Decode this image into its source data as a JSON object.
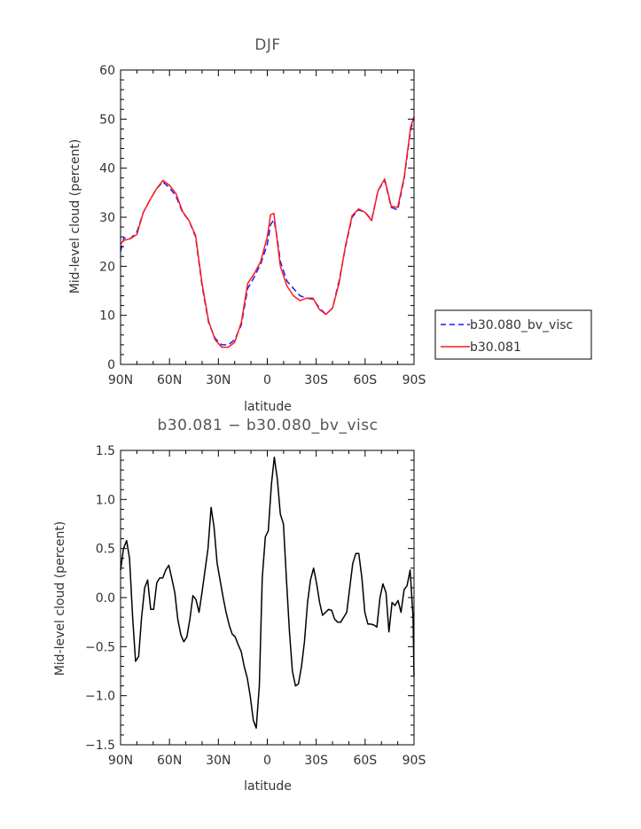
{
  "chart_data": [
    {
      "type": "line",
      "title": "DJF",
      "xlabel": "latitude",
      "ylabel": "Mid-level cloud (percent)",
      "xlim": [
        -90,
        90
      ],
      "ylim": [
        0,
        60
      ],
      "x_ticks": [
        -90,
        -60,
        -30,
        0,
        30,
        60,
        90
      ],
      "x_tick_labels": [
        "90N",
        "60N",
        "30N",
        "0",
        "30S",
        "60S",
        "90S"
      ],
      "y_ticks": [
        0,
        10,
        20,
        30,
        40,
        50,
        60
      ],
      "y_tick_labels": [
        "0",
        "10",
        "20",
        "30",
        "40",
        "50",
        "60"
      ],
      "legend_position": "right of plot",
      "series": [
        {
          "name": "b30.080_bv_visc",
          "color": "#1a1aff",
          "dash": "dashed",
          "x": [
            -90,
            -88,
            -84,
            -80,
            -76,
            -72,
            -68,
            -64,
            -60,
            -56,
            -52,
            -48,
            -44,
            -40,
            -36,
            -32,
            -28,
            -24,
            -20,
            -16,
            -12,
            -8,
            -4,
            0,
            2,
            4,
            6,
            8,
            12,
            16,
            20,
            24,
            28,
            32,
            36,
            40,
            44,
            48,
            52,
            56,
            60,
            64,
            68,
            72,
            76,
            80,
            84,
            88,
            90
          ],
          "y": [
            23,
            25.8,
            25.6,
            27,
            31,
            33.5,
            35.8,
            37.2,
            36,
            34.3,
            31,
            29.3,
            26,
            16,
            8.5,
            5.3,
            4,
            4,
            5,
            8,
            15.5,
            17.8,
            20.5,
            24.5,
            28.5,
            29.5,
            26,
            21,
            17,
            15.5,
            14,
            13.5,
            13.3,
            11.5,
            10.2,
            11.5,
            17,
            24,
            30,
            31.5,
            31,
            29.5,
            35.5,
            37.5,
            32,
            31.5,
            38,
            48,
            50
          ]
        },
        {
          "name": "b30.081",
          "color": "#ff1a1a",
          "dash": "solid",
          "x": [
            -90,
            -88,
            -84,
            -80,
            -76,
            -72,
            -68,
            -64,
            -60,
            -56,
            -52,
            -48,
            -44,
            -40,
            -36,
            -32,
            -28,
            -24,
            -20,
            -16,
            -12,
            -8,
            -4,
            0,
            2,
            4,
            6,
            8,
            12,
            16,
            20,
            24,
            28,
            32,
            36,
            40,
            44,
            48,
            52,
            56,
            60,
            64,
            68,
            72,
            76,
            80,
            84,
            88,
            90
          ],
          "y": [
            24.5,
            25.3,
            25.6,
            26.5,
            31,
            33.5,
            35.8,
            37.5,
            36.5,
            34.8,
            31.2,
            29.3,
            26.3,
            16.5,
            8.8,
            5,
            3.5,
            3.5,
            4.5,
            8.5,
            16.5,
            18.5,
            21,
            26,
            30.5,
            30.8,
            25.5,
            20,
            16,
            14,
            13,
            13.5,
            13.5,
            11.2,
            10.2,
            11.5,
            16.5,
            24.3,
            30.3,
            31.7,
            31,
            29.3,
            35.5,
            37.8,
            32.2,
            32,
            38.3,
            48.5,
            50.5
          ]
        }
      ]
    },
    {
      "type": "line",
      "title": "b30.081 − b30.080_bv_visc",
      "xlabel": "latitude",
      "ylabel": "Mid-level cloud (percent)",
      "xlim": [
        -90,
        90
      ],
      "ylim": [
        -1.5,
        1.5
      ],
      "x_ticks": [
        -90,
        -60,
        -30,
        0,
        30,
        60,
        90
      ],
      "x_tick_labels": [
        "90N",
        "60N",
        "30N",
        "0",
        "30S",
        "60S",
        "90S"
      ],
      "y_ticks": [
        -1.5,
        -1.0,
        -0.5,
        0.0,
        0.5,
        1.0,
        1.5
      ],
      "y_tick_labels": [
        "−1.5",
        "−1.0",
        "−0.5",
        "0.0",
        "0.5",
        "1.0",
        "1.5"
      ],
      "series": [
        {
          "color": "#000000",
          "dash": "solid",
          "x": [
            -90,
            -88.2,
            -86.3,
            -84.5,
            -82.6,
            -80.8,
            -78.9,
            -77.1,
            -75.2,
            -73.4,
            -71.5,
            -69.7,
            -67.8,
            -66,
            -64.1,
            -62.3,
            -60.4,
            -58.6,
            -56.7,
            -54.9,
            -53,
            -51.2,
            -49.3,
            -47.5,
            -45.6,
            -43.8,
            -41.9,
            -40.1,
            -38.2,
            -36.4,
            -34.5,
            -32.7,
            -30.8,
            -29,
            -27.1,
            -25.3,
            -23.4,
            -21.6,
            -19.7,
            -17.9,
            -16,
            -14.2,
            -12.3,
            -10.5,
            -8.6,
            -6.8,
            -4.9,
            -3.1,
            -1.2,
            0.6,
            2.5,
            4.3,
            6.2,
            8,
            9.9,
            11.7,
            13.6,
            15.4,
            17.3,
            19.1,
            21,
            22.8,
            24.7,
            26.5,
            28.4,
            30.2,
            32.1,
            33.9,
            35.8,
            37.6,
            39.5,
            41.3,
            43.2,
            45,
            46.9,
            48.7,
            50.6,
            52.4,
            54.3,
            56.1,
            58,
            59.8,
            61.7,
            63.5,
            65.4,
            67.2,
            69.1,
            70.9,
            72.8,
            74.6,
            76.5,
            78.3,
            80.2,
            82,
            83.9,
            85.7,
            87.6,
            89.4,
            90
          ],
          "y": [
            0.28,
            0.5,
            0.58,
            0.4,
            -0.2,
            -0.65,
            -0.6,
            -0.2,
            0.1,
            0.18,
            -0.12,
            -0.12,
            0.15,
            0.2,
            0.2,
            0.28,
            0.33,
            0.2,
            0.05,
            -0.22,
            -0.38,
            -0.45,
            -0.4,
            -0.22,
            0.02,
            -0.02,
            -0.15,
            0.05,
            0.28,
            0.5,
            0.92,
            0.72,
            0.35,
            0.18,
            0.0,
            -0.15,
            -0.28,
            -0.37,
            -0.4,
            -0.48,
            -0.55,
            -0.7,
            -0.82,
            -1.0,
            -1.25,
            -1.33,
            -0.9,
            0.2,
            0.62,
            0.68,
            1.15,
            1.43,
            1.2,
            0.85,
            0.75,
            0.2,
            -0.35,
            -0.75,
            -0.9,
            -0.88,
            -0.7,
            -0.45,
            -0.05,
            0.18,
            0.3,
            0.15,
            -0.05,
            -0.18,
            -0.15,
            -0.12,
            -0.13,
            -0.22,
            -0.25,
            -0.25,
            -0.2,
            -0.15,
            0.1,
            0.35,
            0.45,
            0.45,
            0.2,
            -0.15,
            -0.27,
            -0.27,
            -0.28,
            -0.3,
            0.0,
            0.14,
            0.05,
            -0.35,
            -0.05,
            -0.08,
            -0.03,
            -0.15,
            0.08,
            0.12,
            0.28,
            -0.2,
            -0.8
          ]
        }
      ]
    }
  ]
}
